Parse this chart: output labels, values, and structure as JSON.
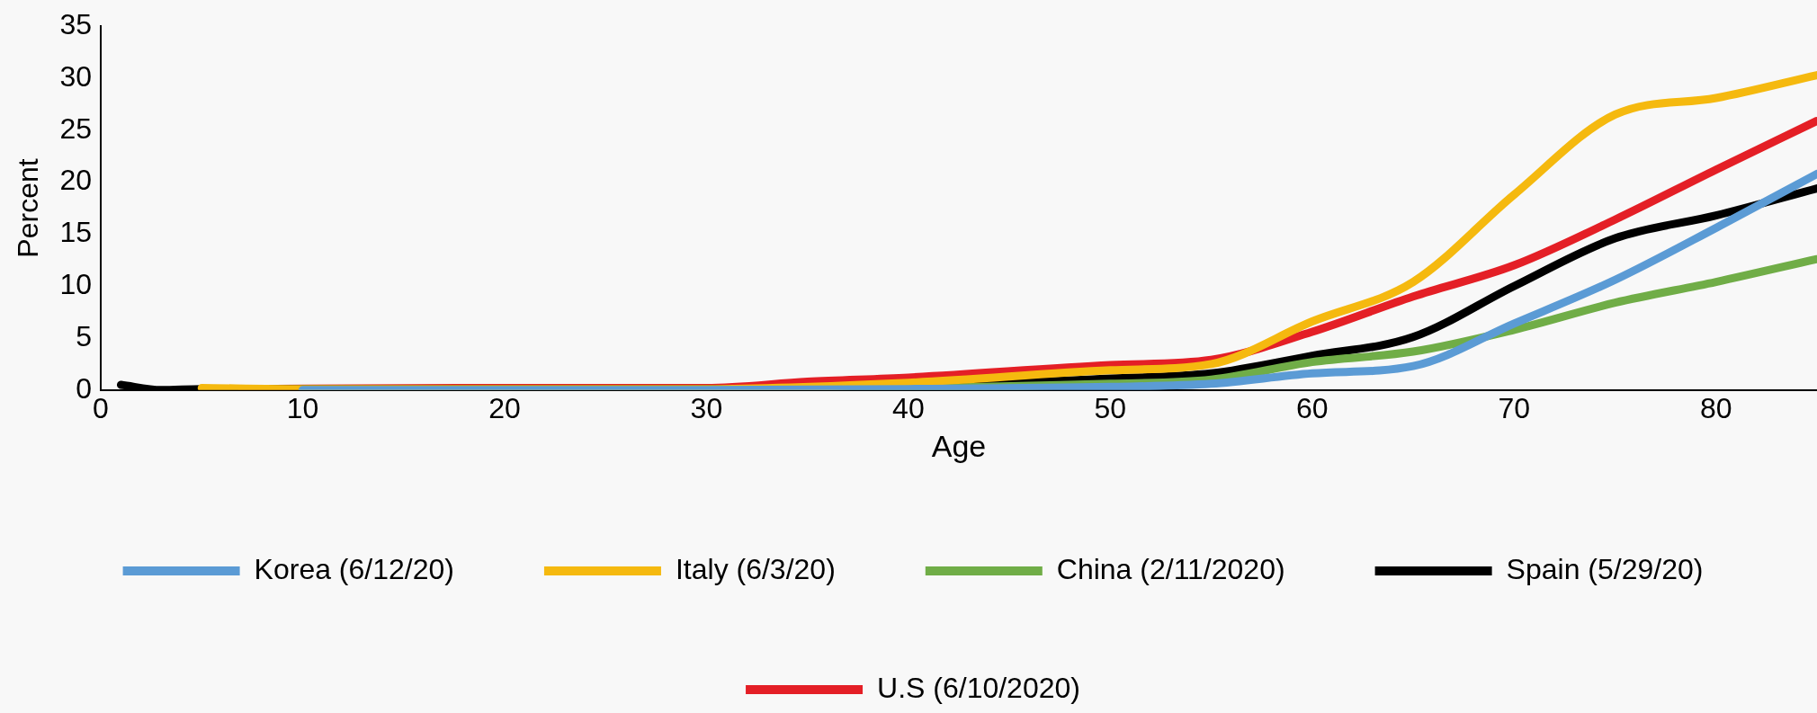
{
  "chart_data": {
    "type": "line",
    "xlabel": "Age",
    "ylabel": "Percent",
    "xlim": [
      0,
      85
    ],
    "xticks": [
      0,
      10,
      20,
      30,
      40,
      50,
      60,
      70,
      80
    ],
    "ylim": [
      0,
      35
    ],
    "yticks": [
      0,
      5,
      10,
      15,
      20,
      25,
      30,
      35
    ],
    "grid": false,
    "legend": "bottom",
    "marker": "none",
    "line_style": "solid",
    "series": [
      {
        "name": "Korea (6/12/20)",
        "color": "#5b9bd5",
        "x": [
          10,
          30,
          40,
          50,
          55,
          60,
          65,
          70,
          75,
          80,
          85
        ],
        "values": [
          0,
          0,
          0.1,
          0.3,
          0.6,
          1.6,
          2.3,
          6.4,
          10.6,
          15.6,
          20.8
        ]
      },
      {
        "name": "Italy (6/3/20)",
        "color": "#f5b90f",
        "x": [
          5,
          10,
          20,
          30,
          40,
          50,
          55,
          60,
          65,
          70,
          75,
          80,
          85
        ],
        "values": [
          0.2,
          0.1,
          0.1,
          0.1,
          0.7,
          1.9,
          2.5,
          6.6,
          10.4,
          18.8,
          26.5,
          28.1,
          30.3
        ]
      },
      {
        "name": "China (2/11/2020)",
        "color": "#70ad47",
        "x": [
          10,
          30,
          40,
          50,
          55,
          60,
          65,
          70,
          75,
          80,
          85
        ],
        "values": [
          0,
          0,
          null,
          0.6,
          1,
          2.7,
          3.7,
          5.8,
          8.4,
          10.4,
          12.6
        ]
      },
      {
        "name": "Spain (5/29/20)",
        "color": "#000000",
        "x": [
          1,
          3,
          5,
          10,
          20,
          30,
          40,
          50,
          55,
          60,
          65,
          70,
          75,
          80,
          85
        ],
        "values": [
          0.5,
          0,
          0.1,
          0.1,
          0.1,
          0.1,
          0.3,
          1.1,
          1.6,
          3.3,
          5.1,
          10,
          14.6,
          16.8,
          19.4
        ]
      },
      {
        "name": "U.S (6/10/2020)",
        "color": "#e41f26",
        "x": [
          7,
          20,
          30,
          35,
          40,
          50,
          55,
          60,
          65,
          70,
          75,
          80,
          85
        ],
        "values": [
          0.1,
          0.2,
          0.2,
          0.8,
          1.2,
          2.4,
          2.9,
          5.6,
          9,
          12,
          16.4,
          21.2,
          25.9
        ]
      }
    ]
  }
}
